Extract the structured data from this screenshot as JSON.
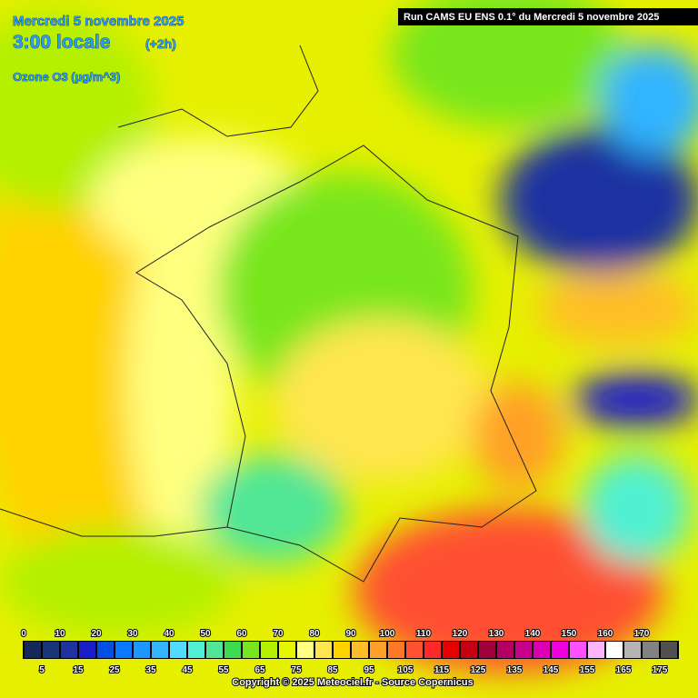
{
  "header": {
    "date": "Mercredi 5 novembre 2025",
    "time": "3:00 locale",
    "offset": "(+2h)",
    "variable": "Ozone O3 (µg/m^3)",
    "run": "Run CAMS EU ENS 0.1° du Mercredi 5 novembre 2025"
  },
  "legend": {
    "range": [
      0,
      180
    ],
    "top_labels": [
      0,
      10,
      20,
      30,
      40,
      50,
      60,
      70,
      80,
      90,
      100,
      110,
      120,
      130,
      140,
      150,
      160,
      170
    ],
    "bottom_labels": [
      5,
      15,
      25,
      35,
      45,
      55,
      65,
      75,
      85,
      95,
      105,
      115,
      125,
      135,
      145,
      155,
      165,
      175
    ],
    "colors": [
      "#14285a",
      "#1a3478",
      "#1e32a0",
      "#1a1ec8",
      "#0050e6",
      "#0a78ff",
      "#1e96ff",
      "#32b4ff",
      "#50dcff",
      "#50f0d2",
      "#50e696",
      "#3cdc50",
      "#78e61e",
      "#b4f000",
      "#e6f500",
      "#ffff80",
      "#ffe650",
      "#ffd200",
      "#ffbe28",
      "#ffa028",
      "#ff7828",
      "#ff5032",
      "#ff2828",
      "#e60000",
      "#c80014",
      "#a0003c",
      "#b40064",
      "#c8008c",
      "#dc00b4",
      "#f000dc",
      "#ff50ff",
      "#ffb4ff",
      "#ffffff",
      "#b4b4b4",
      "#828282",
      "#505050"
    ]
  },
  "footer": {
    "copyright": "Copyright © 2025 Meteociel.fr - Source Copernicus"
  }
}
